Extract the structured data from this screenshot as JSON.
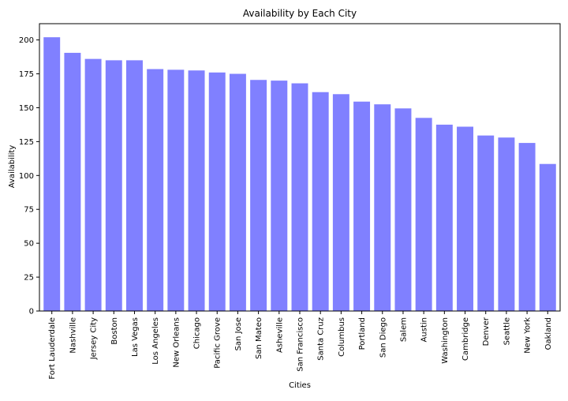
{
  "chart_data": {
    "type": "bar",
    "title": "Availability by Each City",
    "xlabel": "Cities",
    "ylabel": "Availability",
    "categories": [
      "Fort Lauderdale",
      "Nashville",
      "Jersey City",
      "Boston",
      "Las Vegas",
      "Los Angeles",
      "New Orleans",
      "Chicago",
      "Pacific Grove",
      "San Jose",
      "San Mateo",
      "Asheville",
      "San Francisco",
      "Santa Cruz",
      "Columbus",
      "Portland",
      "San Diego",
      "Salem",
      "Austin",
      "Washington",
      "Cambridge",
      "Denver",
      "Seattle",
      "New York",
      "Oakland"
    ],
    "values": [
      202,
      190.5,
      186,
      185,
      185,
      178.5,
      178,
      177.5,
      176,
      175,
      170.5,
      170,
      168,
      161.5,
      160,
      154.5,
      152.5,
      149.5,
      142.5,
      137.5,
      136,
      129.5,
      128,
      124,
      108.5
    ],
    "ylim": [
      0,
      212
    ],
    "yticks": [
      0,
      25,
      50,
      75,
      100,
      125,
      150,
      175,
      200
    ],
    "bar_color": "#8080ff",
    "grid": false,
    "legend": "none"
  }
}
